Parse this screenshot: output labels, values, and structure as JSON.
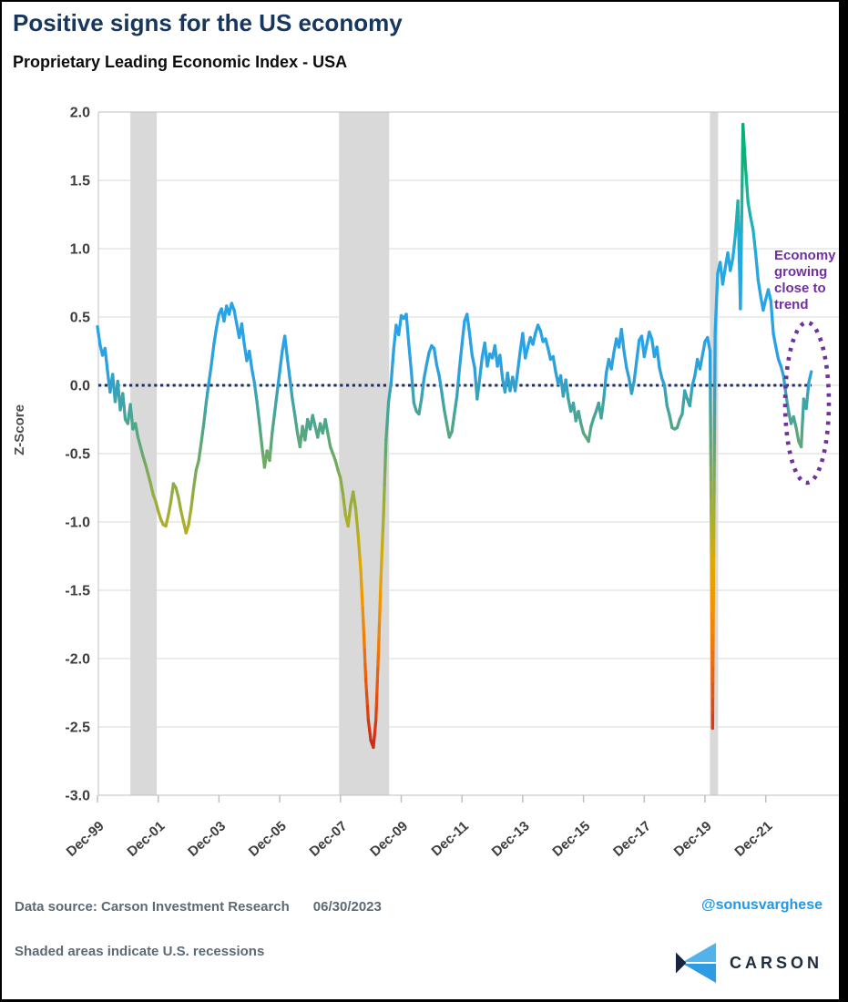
{
  "header": {
    "title": "Positive signs for the US economy",
    "subtitle": "Proprietary Leading Economic Index - USA"
  },
  "annotation": {
    "lines": [
      "Economy",
      "growing",
      "close to",
      "trend"
    ],
    "color": "#7030a0"
  },
  "footer": {
    "source": "Data source: Carson Investment Research",
    "date": "06/30/2023",
    "note": "Shaded areas indicate U.S. recessions",
    "handle": "@sonusvarghese",
    "logo_text": "CARSON"
  },
  "colors": {
    "title_navy": "#17375e",
    "handle_blue": "#2199eb",
    "annotation_purple": "#7030a0",
    "zero_line_navy": "#1b2f66",
    "recession_gray": "#d9d9d9",
    "grid_gray": "#d9d9d9",
    "axis_gray": "#bfbfbf"
  },
  "chart_data": {
    "type": "line",
    "title": "Proprietary Leading Economic Index - USA",
    "ylabel": "Z-Score",
    "ylim": [
      -3.0,
      2.0
    ],
    "grid_step": 0.5,
    "y_tick_values": [
      2.0,
      1.5,
      1.0,
      0.5,
      0.0,
      -0.5,
      -1.0,
      -1.5,
      -2.0,
      -2.5,
      -3.0
    ],
    "y_tick_labels": [
      "2.0",
      "1.5",
      "1.0",
      "0.5",
      "0.0",
      "-0.5",
      "-1.0",
      "-1.5",
      "-2.0",
      "-2.5",
      "-3.0"
    ],
    "x_tick_labels": [
      "Dec-99",
      "Dec-01",
      "Dec-03",
      "Dec-05",
      "Dec-07",
      "Dec-09",
      "Dec-11",
      "Dec-13",
      "Dec-15",
      "Dec-17",
      "Dec-19",
      "Dec-21"
    ],
    "x_tick_years": [
      1999.9167,
      2001.9167,
      2003.9167,
      2005.9167,
      2007.9167,
      2009.9167,
      2011.9167,
      2013.9167,
      2015.9167,
      2017.9167,
      2019.9167,
      2021.9167
    ],
    "series_start_year": 1999.9167,
    "points_per_year": 12,
    "zero_reference": 0.0,
    "legend": "none",
    "grid": "horizontal",
    "recession_shading": [
      [
        2001.0,
        2001.87
      ],
      [
        2007.87,
        2009.52
      ],
      [
        2020.08,
        2020.35
      ]
    ],
    "values": [
      0.43,
      0.3,
      0.22,
      0.27,
      0.1,
      -0.05,
      0.08,
      -0.12,
      0.03,
      -0.18,
      -0.06,
      -0.25,
      -0.28,
      -0.14,
      -0.32,
      -0.28,
      -0.38,
      -0.45,
      -0.52,
      -0.58,
      -0.65,
      -0.72,
      -0.8,
      -0.85,
      -0.92,
      -0.98,
      -1.02,
      -1.03,
      -0.95,
      -0.85,
      -0.72,
      -0.75,
      -0.82,
      -0.92,
      -1.0,
      -1.08,
      -1.02,
      -0.9,
      -0.75,
      -0.62,
      -0.55,
      -0.42,
      -0.28,
      -0.12,
      0.02,
      0.15,
      0.3,
      0.42,
      0.52,
      0.56,
      0.47,
      0.58,
      0.52,
      0.6,
      0.55,
      0.45,
      0.35,
      0.45,
      0.3,
      0.18,
      0.25,
      0.12,
      0.02,
      -0.12,
      -0.28,
      -0.45,
      -0.6,
      -0.48,
      -0.55,
      -0.35,
      -0.2,
      -0.05,
      0.1,
      0.25,
      0.36,
      0.2,
      0.05,
      -0.1,
      -0.22,
      -0.35,
      -0.45,
      -0.3,
      -0.4,
      -0.25,
      -0.32,
      -0.22,
      -0.3,
      -0.38,
      -0.28,
      -0.35,
      -0.25,
      -0.35,
      -0.45,
      -0.5,
      -0.55,
      -0.62,
      -0.68,
      -0.8,
      -0.95,
      -1.03,
      -0.88,
      -0.78,
      -0.9,
      -1.1,
      -1.35,
      -1.72,
      -2.15,
      -2.45,
      -2.6,
      -2.65,
      -2.45,
      -1.95,
      -1.4,
      -0.95,
      -0.4,
      -0.12,
      0.02,
      0.26,
      0.44,
      0.37,
      0.51,
      0.49,
      0.52,
      0.3,
      0.1,
      -0.13,
      -0.19,
      -0.21,
      -0.1,
      0.05,
      0.15,
      0.24,
      0.29,
      0.27,
      0.15,
      0.07,
      -0.05,
      -0.18,
      -0.28,
      -0.38,
      -0.34,
      -0.21,
      -0.08,
      0.12,
      0.3,
      0.47,
      0.52,
      0.38,
      0.22,
      0.13,
      -0.1,
      0.05,
      0.21,
      0.31,
      0.14,
      0.23,
      0.2,
      0.29,
      0.14,
      0.22,
      0.05,
      -0.05,
      0.09,
      -0.04,
      0.06,
      -0.04,
      0.1,
      0.25,
      0.38,
      0.2,
      0.28,
      0.35,
      0.3,
      0.38,
      0.44,
      0.4,
      0.32,
      0.34,
      0.27,
      0.19,
      0.21,
      0.1,
      0.01,
      0.07,
      -0.08,
      0.04,
      -0.1,
      -0.19,
      -0.13,
      -0.26,
      -0.19,
      -0.28,
      -0.35,
      -0.38,
      -0.41,
      -0.3,
      -0.24,
      -0.19,
      -0.13,
      -0.24,
      -0.1,
      0.09,
      0.19,
      0.12,
      0.24,
      0.34,
      0.28,
      0.41,
      0.25,
      0.13,
      0.05,
      -0.06,
      0.03,
      0.18,
      0.33,
      0.36,
      0.21,
      0.3,
      0.39,
      0.34,
      0.21,
      0.28,
      0.13,
      0.05,
      0.0,
      -0.15,
      -0.22,
      -0.31,
      -0.32,
      -0.31,
      -0.25,
      -0.21,
      -0.04,
      -0.1,
      -0.15,
      0.0,
      0.07,
      0.19,
      0.12,
      0.22,
      0.32,
      0.35,
      0.25,
      -2.51,
      0.38,
      0.82,
      0.9,
      0.74,
      0.86,
      0.97,
      0.84,
      0.93,
      1.1,
      1.35,
      0.56,
      1.91,
      1.6,
      1.34,
      1.23,
      1.14,
      0.97,
      0.77,
      0.65,
      0.55,
      0.63,
      0.7,
      0.62,
      0.38,
      0.28,
      0.19,
      0.14,
      0.07,
      -0.07,
      -0.19,
      -0.28,
      -0.23,
      -0.31,
      -0.41,
      -0.45,
      -0.1,
      -0.17,
      0.02,
      0.1
    ],
    "value_colormap": [
      [
        -2.7,
        "#c6231a"
      ],
      [
        -2.5,
        "#d63714"
      ],
      [
        -2.2,
        "#e65811"
      ],
      [
        -1.9,
        "#ef7a06"
      ],
      [
        -1.6,
        "#f29500"
      ],
      [
        -1.3,
        "#ddaa04"
      ],
      [
        -1.05,
        "#b4ae24"
      ],
      [
        -0.8,
        "#94ad41"
      ],
      [
        -0.55,
        "#6faa64"
      ],
      [
        -0.3,
        "#4fa689"
      ],
      [
        -0.08,
        "#3ba4af"
      ],
      [
        0.05,
        "#2fa0d8"
      ],
      [
        0.3,
        "#29a2e6"
      ],
      [
        0.9,
        "#25a7e2"
      ],
      [
        1.1,
        "#22aed0"
      ],
      [
        1.35,
        "#1db49e"
      ],
      [
        1.6,
        "#0fb17a"
      ],
      [
        2.0,
        "#00b06a"
      ]
    ]
  }
}
